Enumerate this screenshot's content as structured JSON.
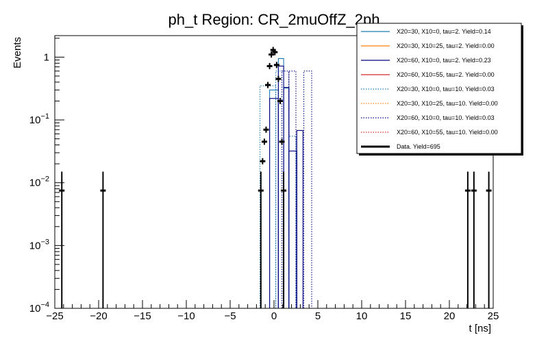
{
  "chart_data": {
    "type": "histogram",
    "title": "ph_t Region: CR_2muOffZ_2ph",
    "xlabel": "t [ns]",
    "ylabel": "Events",
    "xlim": [
      -25,
      25
    ],
    "ylim": [
      0.0001,
      2.2
    ],
    "yscale": "log",
    "x_ticks": [
      -25,
      -20,
      -15,
      -10,
      -5,
      0,
      5,
      10,
      15,
      20,
      25
    ],
    "y_ticks": [
      {
        "value": 0.0001,
        "base": "10",
        "exp": "−4"
      },
      {
        "value": 0.001,
        "base": "10",
        "exp": "−3"
      },
      {
        "value": 0.01,
        "base": "10",
        "exp": "−2"
      },
      {
        "value": 0.1,
        "base": "10",
        "exp": "−1"
      },
      {
        "value": 1,
        "base": "1",
        "exp": ""
      }
    ],
    "legend_position": "top-right",
    "series": [
      {
        "name": "X20=30, X10=0, tau=2. Yield=0.14",
        "color": "#1f77b4",
        "style": "solid",
        "bins": [
          [
            -0.5,
            0.5,
            0.3
          ],
          [
            0.5,
            1.1,
            0.95
          ],
          [
            1.1,
            1.7,
            0.32
          ]
        ]
      },
      {
        "name": "X20=30, X10=25, tau=2. Yield=0.00",
        "color": "#ff7f0e",
        "style": "solid",
        "bins": []
      },
      {
        "name": "X20=60, X10=0, tau=2. Yield=0.23",
        "color": "#00007f",
        "style": "solid",
        "bins": [
          [
            -0.5,
            0.5,
            0.22
          ],
          [
            0.5,
            1.1,
            0.72
          ],
          [
            1.1,
            1.7,
            0.33
          ],
          [
            1.7,
            2.6,
            0.032
          ],
          [
            2.6,
            3.3,
            0.068
          ]
        ]
      },
      {
        "name": "X20=60, X10=55, tau=2. Yield=0.00",
        "color": "#d62728",
        "style": "solid",
        "bins": []
      },
      {
        "name": "X20=30, X10=0, tau=10. Yield=0.03",
        "color": "#1f77b4",
        "style": "dotted",
        "bins": [
          [
            -1.6,
            0.2,
            0.35
          ],
          [
            0.2,
            0.9,
            0.6
          ],
          [
            1.7,
            2.5,
            0.055
          ]
        ]
      },
      {
        "name": "X20=30, X10=25, tau=10. Yield=0.00",
        "color": "#ff7f0e",
        "style": "dotted",
        "bins": []
      },
      {
        "name": "X20=60, X10=0, tau=10. Yield=0.03",
        "color": "#00007f",
        "style": "dotted",
        "bins": [
          [
            0.9,
            1.7,
            0.6
          ],
          [
            1.7,
            2.5,
            0.6
          ],
          [
            3.4,
            4.3,
            0.6
          ]
        ]
      },
      {
        "name": "X20=60, X10=55, tau=10. Yield=0.00",
        "color": "#d62728",
        "style": "dotted",
        "bins": []
      },
      {
        "name": "Data. Yield=695",
        "color": "#000000",
        "style": "data",
        "points": [
          [
            -24.2,
            0.0075
          ],
          [
            -19.5,
            0.0075
          ],
          [
            -1.5,
            0.0075
          ],
          [
            -1.3,
            0.022
          ],
          [
            -1.1,
            0.045
          ],
          [
            -0.9,
            0.07
          ],
          [
            -0.7,
            0.36
          ],
          [
            -0.5,
            0.72
          ],
          [
            -0.3,
            1.1
          ],
          [
            -0.1,
            1.3
          ],
          [
            0.1,
            1.2
          ],
          [
            0.3,
            0.75
          ],
          [
            0.5,
            0.45
          ],
          [
            0.7,
            0.2
          ],
          [
            0.9,
            0.045
          ],
          [
            1.1,
            0.0075
          ],
          [
            22.1,
            0.0075
          ],
          [
            22.8,
            0.0075
          ],
          [
            24.5,
            0.0075
          ]
        ]
      }
    ]
  }
}
